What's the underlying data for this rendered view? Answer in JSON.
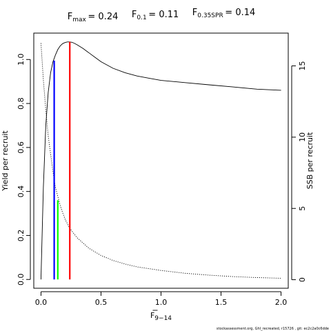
{
  "chart_data": {
    "type": "line",
    "title": [
      {
        "main": "F",
        "sub": "max",
        "value": "= 0.24"
      },
      {
        "main": "F",
        "sub": "0.1",
        "value": "= 0.11"
      },
      {
        "main": "F",
        "sub": "0.35SPR",
        "value": "= 0.14"
      }
    ],
    "xlabel": {
      "main": "F",
      "sub": "9−14",
      "overline": true
    },
    "ylabel_left": "Yield per recruit",
    "ylabel_right": "SSB per recruit",
    "xlim": [
      -0.06,
      2.06
    ],
    "ylim_left": [
      -0.04,
      1.12
    ],
    "ylim_right": [
      -0.6,
      17.3
    ],
    "x_ticks": [
      {
        "value": 0,
        "label": "0.0"
      },
      {
        "value": 0.5,
        "label": "0.5"
      },
      {
        "value": 1,
        "label": "1.0"
      },
      {
        "value": 1.5,
        "label": "1.5"
      },
      {
        "value": 2,
        "label": "2.0"
      }
    ],
    "y_ticks_left": [
      {
        "value": 0,
        "label": "0.0"
      },
      {
        "value": 0.2,
        "label": "0.2"
      },
      {
        "value": 0.4,
        "label": "0.4"
      },
      {
        "value": 0.6,
        "label": "0.6"
      },
      {
        "value": 0.8,
        "label": "0.8"
      },
      {
        "value": 1.0,
        "label": "1.0"
      }
    ],
    "y_ticks_right": [
      {
        "value": 0,
        "label": "0"
      },
      {
        "value": 5,
        "label": "5"
      },
      {
        "value": 10,
        "label": "10"
      },
      {
        "value": 15,
        "label": "15"
      }
    ],
    "series": [
      {
        "axis": "left",
        "style": "solid",
        "color": "#000000",
        "x": [
          0,
          0.02,
          0.04,
          0.06,
          0.08,
          0.1,
          0.11,
          0.12,
          0.14,
          0.16,
          0.18,
          0.2,
          0.22,
          0.24,
          0.26,
          0.28,
          0.3,
          0.35,
          0.4,
          0.45,
          0.5,
          0.6,
          0.7,
          0.8,
          0.9,
          1.0,
          1.2,
          1.4,
          1.6,
          1.8,
          2.0
        ],
        "y": [
          0,
          0.42,
          0.7,
          0.85,
          0.94,
          0.99,
          1.005,
          1.02,
          1.045,
          1.062,
          1.072,
          1.077,
          1.08,
          1.08,
          1.078,
          1.073,
          1.067,
          1.05,
          1.03,
          1.01,
          0.99,
          0.96,
          0.94,
          0.925,
          0.915,
          0.905,
          0.895,
          0.885,
          0.875,
          0.865,
          0.86
        ]
      },
      {
        "axis": "right",
        "style": "dotted",
        "color": "#000000",
        "x": [
          0,
          0.02,
          0.04,
          0.06,
          0.08,
          0.1,
          0.11,
          0.12,
          0.14,
          0.16,
          0.18,
          0.2,
          0.24,
          0.3,
          0.4,
          0.5,
          0.6,
          0.7,
          0.8,
          1.0,
          1.2,
          1.4,
          1.6,
          1.8,
          2.0
        ],
        "y": [
          16.6,
          14.0,
          11.9,
          10.1,
          8.8,
          7.6,
          7.0,
          6.5,
          5.85,
          5.2,
          4.7,
          4.25,
          3.6,
          2.95,
          2.2,
          1.7,
          1.35,
          1.1,
          0.9,
          0.65,
          0.45,
          0.32,
          0.22,
          0.15,
          0.1
        ]
      }
    ],
    "reference_lines": [
      {
        "name": "F0.1",
        "x": 0.11,
        "y_left": 0.995,
        "color": "#0000ff"
      },
      {
        "name": "F0.35SPR",
        "x": 0.14,
        "y_left": 0.36,
        "color": "#00ff00"
      },
      {
        "name": "Fmax",
        "x": 0.24,
        "y_left": 1.08,
        "color": "#ff0000"
      }
    ],
    "grid": false,
    "footer": "stockassessment.org, GhI_recreated, r15726 , git: ec2c2a0c6dde"
  }
}
